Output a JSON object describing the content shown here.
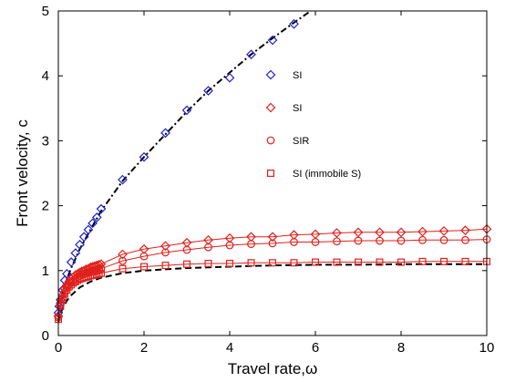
{
  "chart_data": {
    "type": "scatter",
    "xlabel": "Travel rate,ω",
    "ylabel": "Front velocity, c",
    "xlim": [
      0,
      10
    ],
    "ylim": [
      0,
      5
    ],
    "x_ticks": [
      "0",
      "2",
      "4",
      "6",
      "8",
      "10"
    ],
    "y_ticks": [
      "0",
      "1",
      "2",
      "3",
      "4",
      "5"
    ],
    "x_tick_values": [
      0,
      2,
      4,
      6,
      8,
      10
    ],
    "y_tick_values": [
      0,
      1,
      2,
      3,
      4,
      5
    ],
    "grid": false,
    "legend_position": "top-right",
    "colors": {
      "blue": "#1f1fd0",
      "red": "#e0201b",
      "black": "#000000"
    },
    "series": [
      {
        "name": "SI",
        "color": "#1f1fd0",
        "marker": "diamond",
        "x": [
          0,
          0.02,
          0.05,
          0.1,
          0.15,
          0.2,
          0.3,
          0.4,
          0.5,
          0.6,
          0.7,
          0.8,
          0.9,
          1.0,
          1.5,
          2.0,
          2.5,
          3.0,
          3.5,
          4.0,
          4.5,
          5.0,
          5.5
        ],
        "y": [
          0.35,
          0.45,
          0.55,
          0.7,
          0.85,
          0.95,
          1.13,
          1.27,
          1.4,
          1.52,
          1.63,
          1.73,
          1.82,
          1.95,
          2.4,
          2.75,
          3.12,
          3.47,
          3.77,
          3.97,
          4.33,
          4.55,
          4.8
        ]
      },
      {
        "name": "SI",
        "color": "#e0201b",
        "marker": "diamond",
        "x": [
          0,
          0.05,
          0.1,
          0.15,
          0.2,
          0.25,
          0.3,
          0.35,
          0.4,
          0.45,
          0.5,
          0.55,
          0.6,
          0.65,
          0.7,
          0.75,
          0.8,
          0.85,
          0.9,
          0.95,
          1.0,
          1.5,
          2.0,
          2.5,
          3.0,
          3.5,
          4.0,
          4.5,
          5.0,
          5.5,
          6.0,
          6.5,
          7.0,
          7.5,
          8.0,
          8.5,
          9.0,
          9.5,
          10.0
        ],
        "y": [
          0.3,
          0.5,
          0.62,
          0.72,
          0.78,
          0.83,
          0.87,
          0.9,
          0.93,
          0.95,
          0.97,
          0.99,
          1.0,
          1.02,
          1.03,
          1.05,
          1.06,
          1.07,
          1.08,
          1.09,
          1.1,
          1.25,
          1.33,
          1.38,
          1.43,
          1.47,
          1.5,
          1.52,
          1.52,
          1.55,
          1.56,
          1.58,
          1.59,
          1.59,
          1.59,
          1.6,
          1.61,
          1.62,
          1.64
        ]
      },
      {
        "name": "SIR",
        "color": "#e0201b",
        "marker": "circle",
        "x": [
          0,
          0.05,
          0.1,
          0.15,
          0.2,
          0.25,
          0.3,
          0.35,
          0.4,
          0.45,
          0.5,
          0.55,
          0.6,
          0.65,
          0.7,
          0.75,
          0.8,
          0.85,
          0.9,
          0.95,
          1.0,
          1.5,
          2.0,
          2.5,
          3.0,
          3.5,
          4.0,
          4.5,
          5.0,
          5.5,
          6.0,
          6.5,
          7.0,
          7.5,
          8.0,
          8.5,
          9.0,
          9.5,
          10.0
        ],
        "y": [
          0.28,
          0.47,
          0.58,
          0.67,
          0.73,
          0.78,
          0.82,
          0.85,
          0.88,
          0.9,
          0.92,
          0.94,
          0.95,
          0.96,
          0.97,
          0.98,
          0.99,
          1.0,
          1.01,
          1.02,
          1.03,
          1.15,
          1.22,
          1.28,
          1.32,
          1.36,
          1.39,
          1.41,
          1.42,
          1.44,
          1.44,
          1.45,
          1.46,
          1.46,
          1.46,
          1.47,
          1.47,
          1.47,
          1.48
        ]
      },
      {
        "name": "SI (immobile S)",
        "color": "#e0201b",
        "marker": "square",
        "x": [
          0,
          0.05,
          0.1,
          0.15,
          0.2,
          0.25,
          0.3,
          0.35,
          0.4,
          0.45,
          0.5,
          0.55,
          0.6,
          0.65,
          0.7,
          0.75,
          0.8,
          0.85,
          0.9,
          0.95,
          1.0,
          1.5,
          2.0,
          2.5,
          3.0,
          3.5,
          4.0,
          4.5,
          5.0,
          5.5,
          6.0,
          6.5,
          7.0,
          7.5,
          8.0,
          8.5,
          9.0,
          9.5,
          10.0
        ],
        "y": [
          0.25,
          0.45,
          0.56,
          0.64,
          0.7,
          0.75,
          0.78,
          0.81,
          0.83,
          0.85,
          0.87,
          0.88,
          0.89,
          0.9,
          0.91,
          0.92,
          0.93,
          0.93,
          0.94,
          0.95,
          0.96,
          1.03,
          1.06,
          1.08,
          1.1,
          1.11,
          1.11,
          1.12,
          1.12,
          1.12,
          1.13,
          1.13,
          1.13,
          1.13,
          1.13,
          1.14,
          1.14,
          1.14,
          1.14
        ]
      }
    ],
    "reference_curves": [
      {
        "style": "dash-dot",
        "color": "#000000",
        "x": [
          0,
          0.1,
          0.2,
          0.3,
          0.5,
          0.75,
          1.0,
          1.5,
          2.0,
          2.5,
          3.0,
          3.5,
          4.0,
          4.5,
          5.0,
          5.5,
          6.0,
          6.5
        ],
        "y": [
          0.3,
          0.67,
          0.87,
          1.04,
          1.33,
          1.63,
          1.92,
          2.38,
          2.75,
          3.1,
          3.45,
          3.77,
          4.05,
          4.33,
          4.58,
          4.82,
          5.05,
          5.25
        ]
      },
      {
        "style": "dashed",
        "color": "#000000",
        "x": [
          0,
          0.05,
          0.1,
          0.2,
          0.3,
          0.5,
          0.75,
          1.0,
          1.5,
          2.0,
          3.0,
          4.0,
          5.0,
          6.0,
          7.0,
          8.0,
          9.0,
          10.0
        ],
        "y": [
          0.2,
          0.33,
          0.42,
          0.54,
          0.62,
          0.74,
          0.83,
          0.89,
          0.96,
          1.0,
          1.04,
          1.06,
          1.08,
          1.09,
          1.09,
          1.1,
          1.1,
          1.1
        ]
      }
    ]
  }
}
